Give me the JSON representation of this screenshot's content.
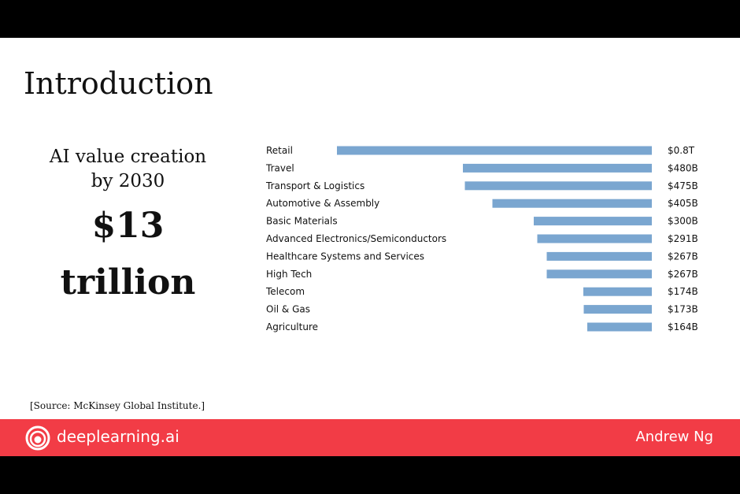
{
  "slide": {
    "title": "Introduction",
    "headline_line1": "AI value creation",
    "headline_line2": "by 2030",
    "big_value": "$13",
    "big_unit": "trillion",
    "source": "[Source: McKinsey Global Institute.]"
  },
  "footer": {
    "brand": "deeplearning.ai",
    "author": "Andrew Ng",
    "background_color": "#f23c46",
    "logo_icon": "deeplearning-spiral-logo-icon"
  },
  "chart_data": {
    "type": "bar",
    "orientation": "horizontal",
    "bar_anchor": "right",
    "bar_color": "#7aa6d0",
    "categories": [
      "Retail",
      "Travel",
      "Transport & Logistics",
      "Automotive & Assembly",
      "Basic Materials",
      "Advanced Electronics/Semiconductors",
      "Healthcare Systems and Services",
      "High Tech",
      "Telecom",
      "Oil & Gas",
      "Agriculture"
    ],
    "values": [
      800,
      480,
      475,
      405,
      300,
      291,
      267,
      267,
      174,
      173,
      164
    ],
    "value_unit": "billion USD",
    "value_labels": [
      "$0.8T",
      "$480B",
      "$475B",
      "$405B",
      "$300B",
      "$291B",
      "$267B",
      "$267B",
      "$174B",
      "$173B",
      "$164B"
    ]
  }
}
